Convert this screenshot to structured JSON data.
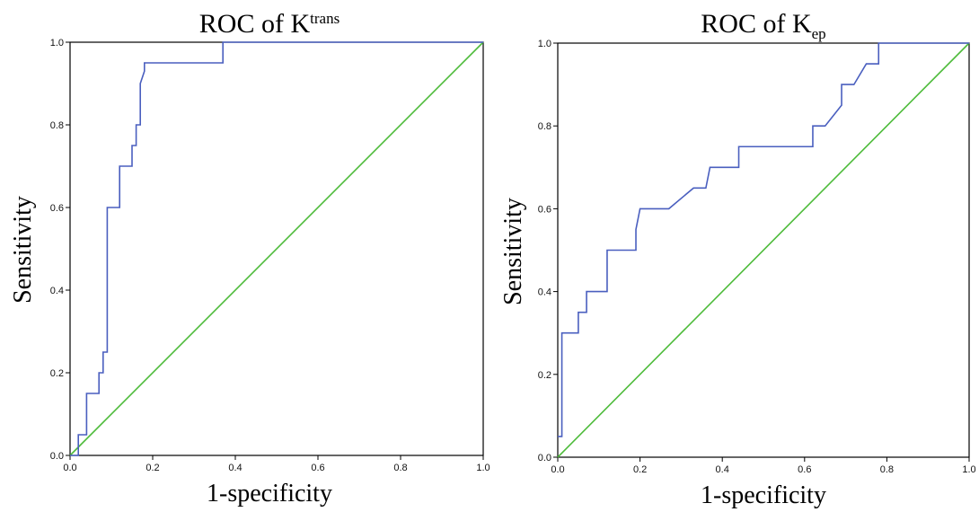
{
  "chart_data": [
    {
      "type": "line",
      "title": "ROC of K",
      "title_superscript": "trans",
      "xlabel": "1-specificity",
      "ylabel": "Sensitivity",
      "xlim": [
        0,
        1
      ],
      "ylim": [
        0,
        1
      ],
      "ticks": [
        "0.0",
        "0.2",
        "0.4",
        "0.6",
        "0.8",
        "1.0"
      ],
      "colors": {
        "roc": "#4a5fbf",
        "reference": "#4dbb3a"
      },
      "series": [
        {
          "x": [
            0.0,
            0.02,
            0.02,
            0.04,
            0.04,
            0.07,
            0.07,
            0.08,
            0.08,
            0.09,
            0.09,
            0.12,
            0.12,
            0.15,
            0.15,
            0.16,
            0.16,
            0.17,
            0.17,
            0.18,
            0.18,
            0.37,
            0.37,
            1.0
          ],
          "y": [
            0.0,
            0.0,
            0.05,
            0.05,
            0.15,
            0.15,
            0.2,
            0.2,
            0.25,
            0.25,
            0.6,
            0.6,
            0.7,
            0.7,
            0.75,
            0.75,
            0.8,
            0.8,
            0.9,
            0.93,
            0.95,
            0.95,
            1.0,
            1.0
          ]
        },
        {
          "x": [
            0,
            1
          ],
          "y": [
            0,
            1
          ]
        }
      ]
    },
    {
      "type": "line",
      "title": "ROC of K",
      "title_subscript": "ep",
      "xlabel": "1-specificity",
      "ylabel": "Sensitivity",
      "xlim": [
        0,
        1
      ],
      "ylim": [
        0,
        1
      ],
      "ticks": [
        "0.0",
        "0.2",
        "0.4",
        "0.6",
        "0.8",
        "1.0"
      ],
      "colors": {
        "roc": "#4a5fbf",
        "reference": "#4dbb3a"
      },
      "series": [
        {
          "x": [
            0.0,
            0.01,
            0.01,
            0.05,
            0.05,
            0.07,
            0.07,
            0.09,
            0.09,
            0.12,
            0.12,
            0.19,
            0.19,
            0.2,
            0.2,
            0.27,
            0.33,
            0.36,
            0.36,
            0.37,
            0.37,
            0.44,
            0.44,
            0.62,
            0.62,
            0.65,
            0.69,
            0.69,
            0.72,
            0.75,
            0.75,
            0.78,
            0.78,
            1.0
          ],
          "y": [
            0.05,
            0.05,
            0.3,
            0.3,
            0.35,
            0.35,
            0.4,
            0.4,
            0.4,
            0.4,
            0.5,
            0.5,
            0.55,
            0.6,
            0.6,
            0.6,
            0.65,
            0.65,
            0.65,
            0.7,
            0.7,
            0.7,
            0.75,
            0.75,
            0.8,
            0.8,
            0.85,
            0.9,
            0.9,
            0.95,
            0.95,
            0.95,
            1.0,
            1.0
          ]
        },
        {
          "x": [
            0,
            1
          ],
          "y": [
            0,
            1
          ]
        }
      ]
    }
  ]
}
